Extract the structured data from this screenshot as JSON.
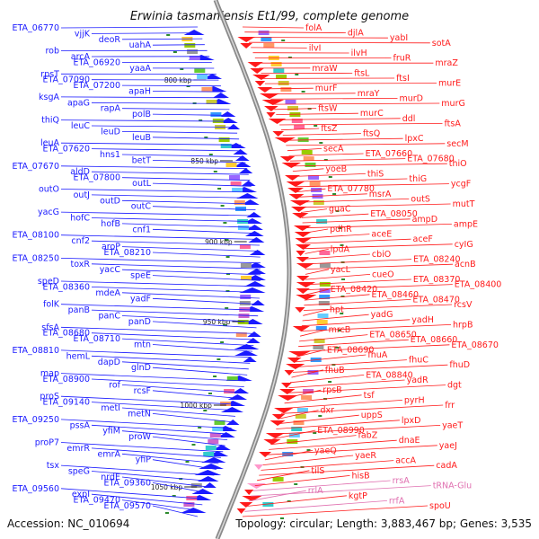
{
  "title": "Erwinia tasmaniensis Et1/99, complete genome",
  "footer": {
    "accession": "Accession: NC_010694",
    "summary": "Topology: circular; Length: 3,883,467 bp; Genes: 3,535"
  },
  "ticks": [
    "800 kbp",
    "850 kbp",
    "900 kbp",
    "950 kbp",
    "1000 kbp",
    "1050 kbp"
  ],
  "colors": {
    "minus_strand": "#1a1aff",
    "plus_strand": "#ff1a1a",
    "rna_genes": "#ff99cc",
    "backbone": "#8a8a8a"
  },
  "left_labels": [
    "ETA_06770",
    "vjjK",
    "deoR",
    "uahA",
    "rob",
    "arcA",
    "ETA_06920",
    "yaaA",
    "rpsT",
    "ETA_07090",
    "ETA_07200",
    "apaH",
    "ksgA",
    "apaG",
    "rapA",
    "polB",
    "thiQ",
    "leuC",
    "leuD",
    "leuB",
    "leuA",
    "ETA_07620",
    "hns1",
    "betT",
    "ETA_07670",
    "aldD",
    "ETA_07800",
    "outL",
    "outO",
    "outJ",
    "outD",
    "outC",
    "yacG",
    "hofC",
    "hofB",
    "cnf1",
    "ETA_08100",
    "cnf2",
    "aroP",
    "ETA_08210",
    "ETA_08250",
    "toxR",
    "yacC",
    "speE",
    "speD",
    "ETA_08360",
    "mdeA",
    "yadF",
    "folK",
    "panB",
    "panC",
    "panD",
    "sfsA",
    "ETA_08680",
    "ETA_08710",
    "mtn",
    "ETA_08810",
    "hemL",
    "dapD",
    "glnD",
    "map",
    "ETA_08900",
    "rof",
    "rcsF",
    "proS",
    "ETA_09140",
    "metI",
    "metN",
    "ETA_09250",
    "pssA",
    "yfiM",
    "proW",
    "proP7",
    "emrR",
    "emrA",
    "yfiP",
    "tsx",
    "speG",
    "nrdE",
    "ETA_09360",
    "ETA_09560",
    "expI",
    "ETA_09470",
    "ETA_09570"
  ],
  "right_labels": [
    "folA",
    "djlA",
    "yabI",
    "sotA",
    "ilvI",
    "ilvH",
    "fruR",
    "mraZ",
    "mraW",
    "ftsL",
    "ftsI",
    "murE",
    "murF",
    "mraY",
    "murD",
    "murG",
    "ftsW",
    "murC",
    "ddl",
    "ftsA",
    "ftsZ",
    "ftsQ",
    "lpxC",
    "secM",
    "secA",
    "ETA_07660",
    "ETA_07680",
    "thiO",
    "yoeB",
    "thiS",
    "thiG",
    "ycgF",
    "ETA_07780",
    "msrA",
    "outS",
    "mutT",
    "guaC",
    "ETA_08050",
    "ampD",
    "ampE",
    "pdhR",
    "aceE",
    "aceF",
    "cyIG",
    "lpdA",
    "cbiO",
    "ETA_08240",
    "acnB",
    "yacL",
    "cueO",
    "ETA_08370",
    "ETA_08400",
    "ETA_08420",
    "ETA_08460",
    "ETA_08470",
    "rcsV",
    "hpt",
    "yadG",
    "yadH",
    "hrpB",
    "mrcB",
    "ETA_08650",
    "ETA_08660",
    "ETA_08670",
    "ETA_08690",
    "fhuA",
    "fhuC",
    "fhuD",
    "fhuB",
    "ETA_08840",
    "yadR",
    "dgt",
    "rpsB",
    "tsf",
    "pyrH",
    "frr",
    "dxr",
    "uppS",
    "lpxD",
    "yaeT",
    "ETA_08990",
    "fabZ",
    "dnaE",
    "yaeJ",
    "yaeQ",
    "yaeR",
    "accA",
    "cadA",
    "tilS",
    "hisB",
    "rrsA",
    "tRNA-Glu",
    "rrlA",
    "kgtP",
    "rrfA",
    "spoU"
  ]
}
